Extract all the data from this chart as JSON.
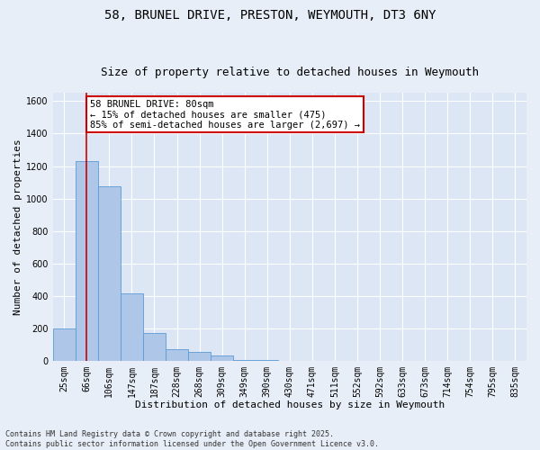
{
  "title_line1": "58, BRUNEL DRIVE, PRESTON, WEYMOUTH, DT3 6NY",
  "title_line2": "Size of property relative to detached houses in Weymouth",
  "xlabel": "Distribution of detached houses by size in Weymouth",
  "ylabel": "Number of detached properties",
  "categories": [
    "25sqm",
    "66sqm",
    "106sqm",
    "147sqm",
    "187sqm",
    "228sqm",
    "268sqm",
    "309sqm",
    "349sqm",
    "390sqm",
    "430sqm",
    "471sqm",
    "511sqm",
    "552sqm",
    "592sqm",
    "633sqm",
    "673sqm",
    "714sqm",
    "754sqm",
    "795sqm",
    "835sqm"
  ],
  "values": [
    200,
    1230,
    1075,
    415,
    170,
    70,
    55,
    30,
    5,
    5,
    0,
    0,
    0,
    0,
    0,
    0,
    0,
    0,
    0,
    0,
    0
  ],
  "bar_color": "#aec6e8",
  "bar_edge_color": "#5b9bd5",
  "red_line_x": 1.0,
  "red_line_color": "#cc0000",
  "annotation_text": "58 BRUNEL DRIVE: 80sqm\n← 15% of detached houses are smaller (475)\n85% of semi-detached houses are larger (2,697) →",
  "annotation_box_color": "#ffffff",
  "annotation_border_color": "#cc0000",
  "ylim": [
    0,
    1650
  ],
  "yticks": [
    0,
    200,
    400,
    600,
    800,
    1000,
    1200,
    1400,
    1600
  ],
  "bg_color": "#e8eef7",
  "plot_bg_color": "#dce6f5",
  "grid_color": "#ffffff",
  "footnote": "Contains HM Land Registry data © Crown copyright and database right 2025.\nContains public sector information licensed under the Open Government Licence v3.0.",
  "title_fontsize": 10,
  "subtitle_fontsize": 9,
  "axis_label_fontsize": 8,
  "tick_fontsize": 7,
  "annotation_fontsize": 7.5,
  "footnote_fontsize": 6
}
